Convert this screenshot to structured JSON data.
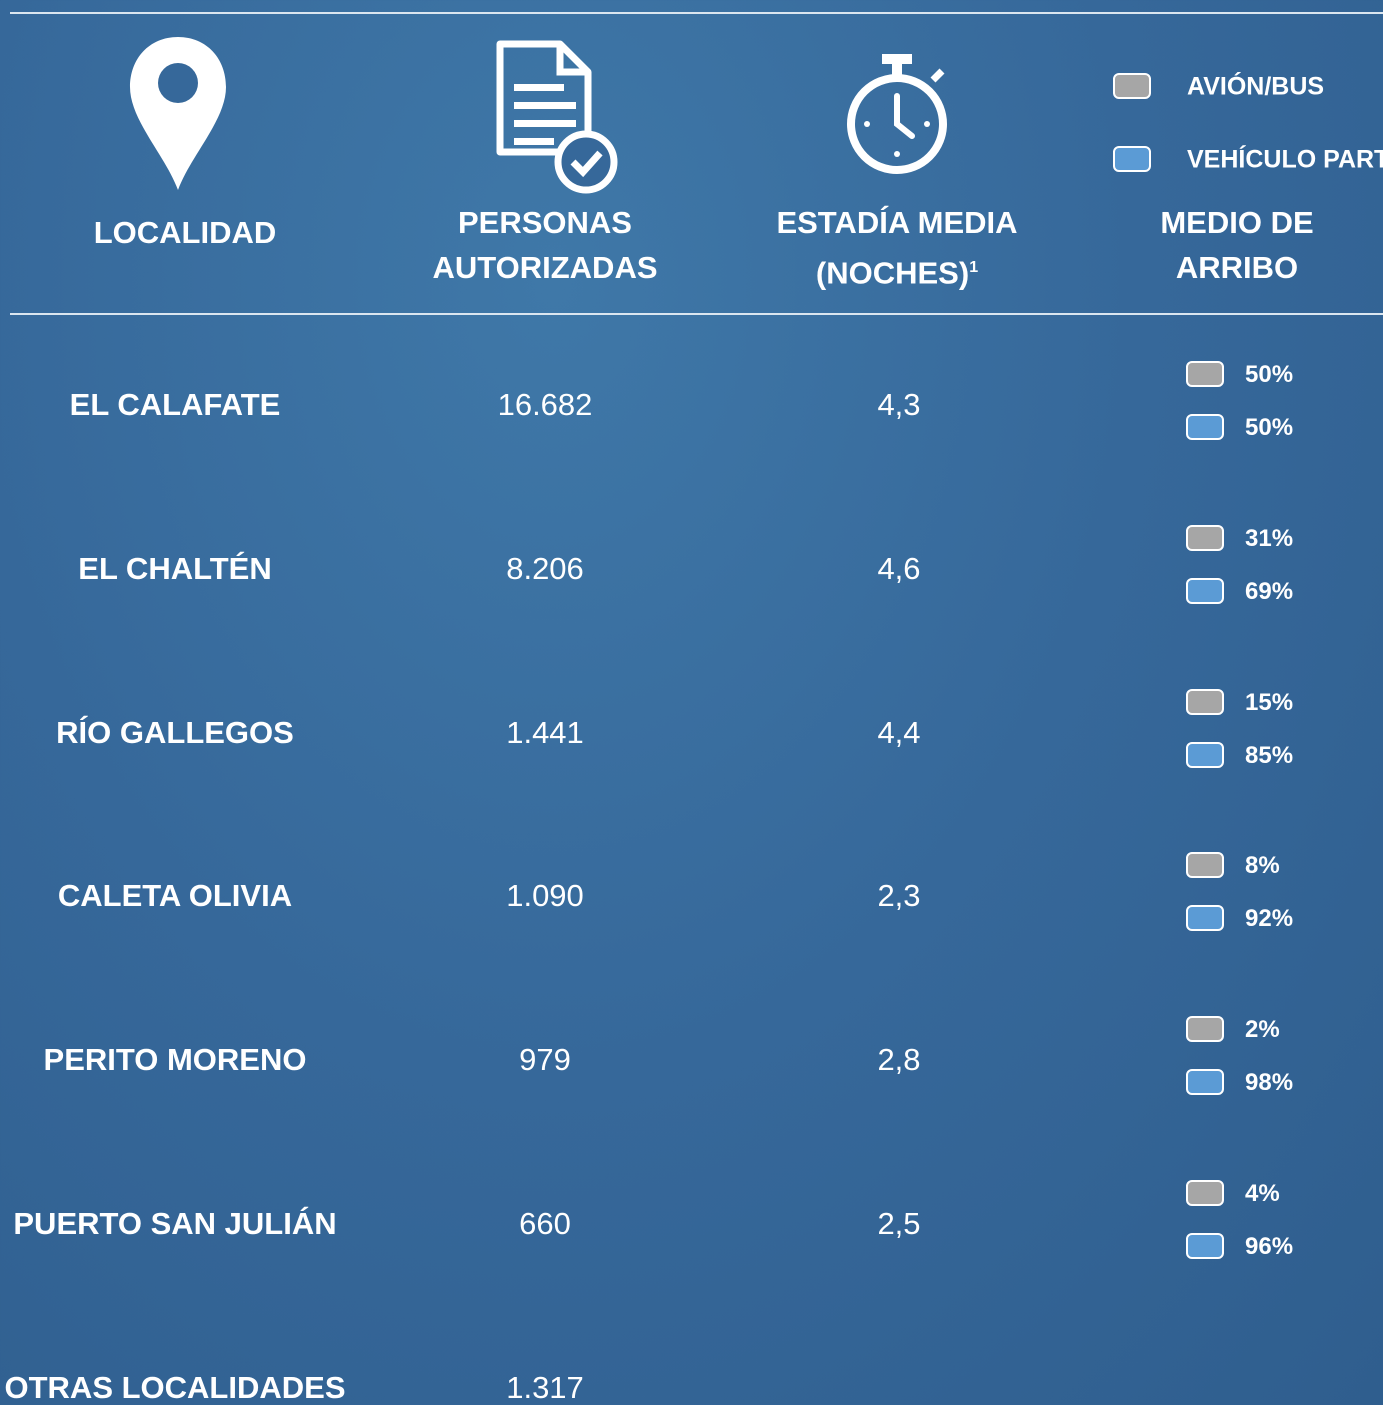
{
  "header": {
    "columns": [
      "LOCALIDAD",
      "PERSONAS AUTORIZADAS",
      "ESTADÍA MEDIA (NOCHES)",
      "MEDIO DE ARRIBO"
    ],
    "footnote_mark": "1"
  },
  "legend": [
    {
      "label": "AVIÓN/BUS",
      "color": "#a6a6a6"
    },
    {
      "label": "VEHÍCULO PART",
      "color": "#5b9bd5"
    }
  ],
  "rows": [
    {
      "localidad": "EL CALAFATE",
      "personas": "16.682",
      "estadia": "4,3",
      "arribo": [
        "50%",
        "50%"
      ]
    },
    {
      "localidad": "EL CHALTÉN",
      "personas": "8.206",
      "estadia": "4,6",
      "arribo": [
        "31%",
        "69%"
      ]
    },
    {
      "localidad": "RÍO GALLEGOS",
      "personas": "1.441",
      "estadia": "4,4",
      "arribo": [
        "15%",
        "85%"
      ]
    },
    {
      "localidad": "CALETA OLIVIA",
      "personas": "1.090",
      "estadia": "2,3",
      "arribo": [
        "8%",
        "92%"
      ]
    },
    {
      "localidad": "PERITO MORENO",
      "personas": "979",
      "estadia": "2,8",
      "arribo": [
        "2%",
        "98%"
      ]
    },
    {
      "localidad": "PUERTO SAN JULIÁN",
      "personas": "660",
      "estadia": "2,5",
      "arribo": [
        "4%",
        "96%"
      ]
    },
    {
      "localidad": "OTRAS LOCALIDADES",
      "personas": "1.317"
    }
  ]
}
